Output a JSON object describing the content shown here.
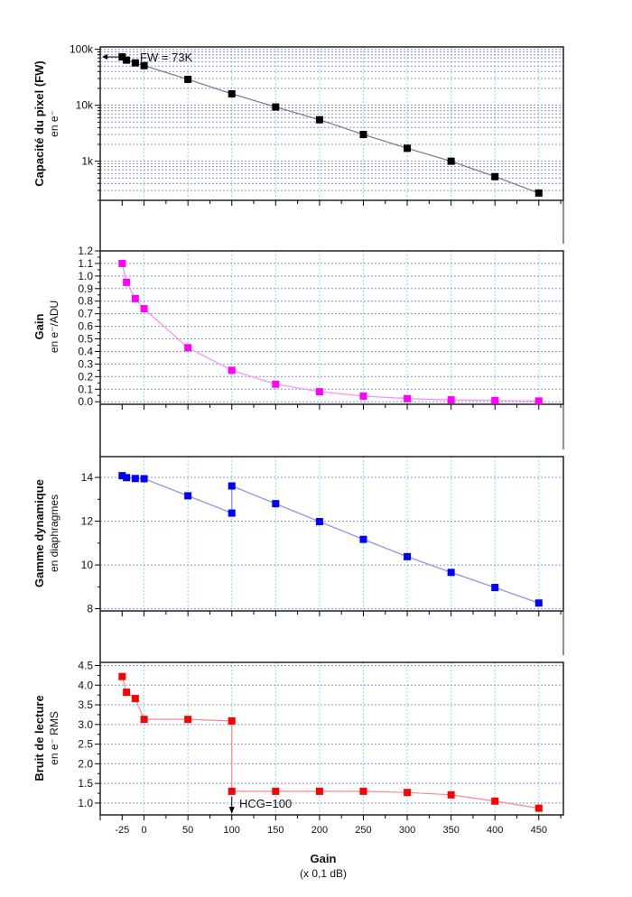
{
  "chart_data": [
    {
      "type": "line",
      "ylabel": "Capacité du pixel (FW)",
      "ysublabel": "en e⁻",
      "yscale": "log",
      "ylim": [
        200,
        110000
      ],
      "yticks": [
        1000,
        10000,
        100000
      ],
      "ytick_labels": [
        "1k",
        "10k",
        "100k"
      ],
      "color": "#000000",
      "line_color": "#777777",
      "grid": true,
      "x": [
        -25,
        -20,
        -10,
        0,
        50,
        100,
        150,
        200,
        250,
        300,
        350,
        400,
        450
      ],
      "y": [
        73000,
        64000,
        57000,
        51000,
        29000,
        16000,
        9300,
        5500,
        3000,
        1700,
        1000,
        530,
        270
      ],
      "annotation": "FW = 73K"
    },
    {
      "type": "line",
      "ylabel": "Gain",
      "ysublabel": "en e⁻/ADU",
      "ylim": [
        -0.02,
        1.2
      ],
      "yticks": [
        0.0,
        0.1,
        0.2,
        0.3,
        0.4,
        0.5,
        0.6,
        0.7,
        0.8,
        0.9,
        1.0,
        1.1,
        1.2
      ],
      "ytick_labels": [
        "0.0",
        "0.1",
        "0.2",
        "0.3",
        "0.4",
        "0.5",
        "0.6",
        "0.7",
        "0.8",
        "0.9",
        "1.0",
        "1.1",
        "1.2"
      ],
      "color": "#ff00ff",
      "line_color": "#ff88ff",
      "grid": true,
      "x": [
        -25,
        -20,
        -10,
        0,
        50,
        100,
        150,
        200,
        250,
        300,
        350,
        400,
        450
      ],
      "y": [
        1.1,
        0.95,
        0.82,
        0.74,
        0.43,
        0.25,
        0.14,
        0.08,
        0.045,
        0.025,
        0.015,
        0.01,
        0.006
      ]
    },
    {
      "type": "line",
      "ylabel": "Gamme dynamique",
      "ysublabel": "en diaphragmes",
      "ylim": [
        7.9,
        14.95
      ],
      "yticks": [
        8,
        10,
        12,
        14
      ],
      "ytick_labels": [
        "8",
        "10",
        "12",
        "14"
      ],
      "color": "#0000ff",
      "line_color": "#8888ff",
      "grid": true,
      "x": [
        -25,
        -20,
        -10,
        0,
        50,
        100,
        100,
        150,
        200,
        250,
        300,
        350,
        400,
        450
      ],
      "y": [
        14.08,
        13.99,
        13.95,
        13.94,
        13.16,
        12.37,
        13.61,
        12.8,
        11.98,
        11.17,
        10.38,
        9.66,
        8.97,
        8.26
      ]
    },
    {
      "type": "line",
      "ylabel": "Bruit de lecture",
      "ysublabel": "en e⁻ RMS",
      "ylim": [
        0.7,
        4.58
      ],
      "yticks": [
        1.0,
        1.5,
        2.0,
        2.5,
        3.0,
        3.5,
        4.0,
        4.5
      ],
      "ytick_labels": [
        "1.0",
        "1.5",
        "2.0",
        "2.5",
        "3.0",
        "3.5",
        "4.0",
        "4.5"
      ],
      "color": "#ff0000",
      "line_color": "#ff8888",
      "grid": true,
      "x": [
        -25,
        -20,
        -10,
        0,
        50,
        100,
        100,
        150,
        200,
        250,
        300,
        350,
        400,
        450
      ],
      "y": [
        4.22,
        3.82,
        3.66,
        3.13,
        3.13,
        3.09,
        1.3,
        1.3,
        1.3,
        1.3,
        1.27,
        1.21,
        1.05,
        0.87
      ],
      "annotation": "HCG=100"
    }
  ],
  "x_axis": {
    "label": "Gain",
    "sublabel": "(x 0,1 dB)",
    "xlim": [
      -50,
      478
    ],
    "ticks": [
      -25,
      0,
      50,
      100,
      150,
      200,
      250,
      300,
      350,
      400,
      450
    ],
    "tick_labels": [
      "-25",
      "0",
      "50",
      "100",
      "150",
      "200",
      "250",
      "300",
      "350",
      "400",
      "450"
    ]
  },
  "colors": {
    "hgrid": "#8c8cf0",
    "vgrid": "#7fe0f0"
  }
}
